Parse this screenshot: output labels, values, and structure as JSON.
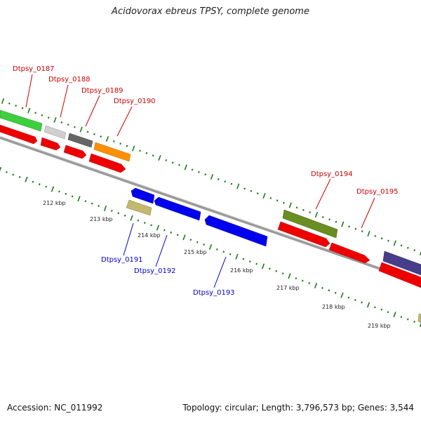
{
  "title": "Acidovorax ebreus TPSY, complete genome",
  "footer": {
    "accession": "Accession: NC_011992",
    "summary": "Topology: circular; Length: 3,796,573 bp; Genes: 3,544"
  },
  "kbp_labels": [
    "212 kbp",
    "213 kbp",
    "214 kbp",
    "215 kbp",
    "216 kbp",
    "217 kbp",
    "218 kbp",
    "219 kbp"
  ],
  "genes": [
    {
      "name": "Dtpsy_0187",
      "strand": "forward",
      "color": "#3ecf3e"
    },
    {
      "name": "Dtpsy_0188",
      "strand": "forward",
      "color": "#c8c8c8"
    },
    {
      "name": "Dtpsy_0189",
      "strand": "forward",
      "color": "#666666"
    },
    {
      "name": "Dtpsy_0190",
      "strand": "forward",
      "color": "#ff9000"
    },
    {
      "name": "Dtpsy_0191",
      "strand": "reverse",
      "color": "#c2b870"
    },
    {
      "name": "Dtpsy_0192",
      "strand": "reverse",
      "color": "#0000ee"
    },
    {
      "name": "Dtpsy_0193",
      "strand": "reverse",
      "color": "#0000ee"
    },
    {
      "name": "Dtpsy_0194",
      "strand": "forward",
      "color": "#6b8e23"
    },
    {
      "name": "Dtpsy_0195",
      "strand": "forward",
      "color": "#ff0000"
    }
  ],
  "colors": {
    "forward_label": "#cc0000",
    "reverse_label": "#0000cc",
    "cds_track": "#ff0000",
    "backbone": "#888888",
    "tick": "#1a7a1a"
  }
}
